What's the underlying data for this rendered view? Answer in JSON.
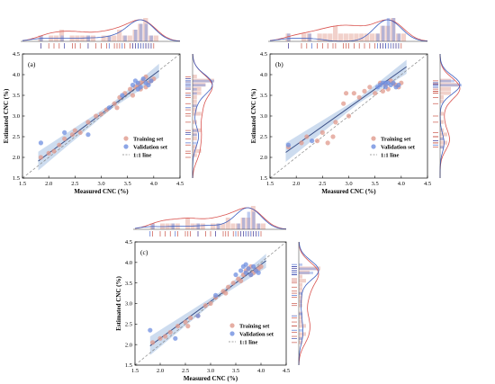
{
  "colors": {
    "training": "#e09a8c",
    "validation": "#6f8fe0",
    "fit_line": "#3b4f86",
    "band": "#b8cde8",
    "identity": "#888888",
    "rug_training": "#c0392b",
    "rug_validation": "#2f55c8",
    "kde_training": "#d9534f",
    "kde_validation": "#3c5fc0"
  },
  "chart_data": [
    {
      "type": "scatter",
      "panel_label": "(a)",
      "xlabel": "Measured CNC (%)",
      "ylabel": "Estimated CNC (%)",
      "xlim": [
        1.5,
        4.5
      ],
      "ylim": [
        1.5,
        4.5
      ],
      "x_ticks": [
        "1.5",
        "2.0",
        "2.5",
        "3.0",
        "3.5",
        "4.0",
        "4.5"
      ],
      "y_ticks": [
        "1.5",
        "2.0",
        "2.5",
        "3.0",
        "3.5",
        "4.0",
        "4.5"
      ],
      "legend": [
        "Training set",
        "Validation set",
        "1:1 line"
      ],
      "legend_position": "bottom-right",
      "grid": false,
      "fit": {
        "slope": 0.95,
        "intercept": 0.2
      },
      "series": [
        {
          "name": "Training set",
          "points": [
            [
              1.85,
              2.0
            ],
            [
              2.1,
              2.15
            ],
            [
              2.2,
              2.3
            ],
            [
              2.3,
              2.45
            ],
            [
              2.45,
              2.55
            ],
            [
              2.6,
              2.6
            ],
            [
              2.75,
              2.85
            ],
            [
              2.9,
              3.0
            ],
            [
              3.0,
              3.05
            ],
            [
              3.1,
              3.15
            ],
            [
              3.25,
              3.3
            ],
            [
              3.35,
              3.45
            ],
            [
              3.45,
              3.55
            ],
            [
              3.55,
              3.65
            ],
            [
              3.65,
              3.7
            ],
            [
              3.7,
              3.75
            ],
            [
              3.75,
              3.8
            ],
            [
              3.8,
              3.85
            ],
            [
              3.85,
              3.7
            ],
            [
              3.9,
              3.8
            ],
            [
              3.95,
              3.85
            ],
            [
              4.0,
              3.9
            ],
            [
              3.6,
              3.5
            ],
            [
              3.3,
              3.2
            ],
            [
              2.5,
              2.65
            ],
            [
              2.0,
              2.1
            ],
            [
              3.85,
              3.95
            ],
            [
              3.75,
              3.65
            ]
          ]
        },
        {
          "name": "Validation set",
          "points": [
            [
              1.85,
              2.35
            ],
            [
              2.3,
              2.6
            ],
            [
              2.75,
              2.55
            ],
            [
              3.15,
              3.2
            ],
            [
              3.4,
              3.5
            ],
            [
              3.6,
              3.75
            ],
            [
              3.65,
              3.85
            ],
            [
              3.7,
              3.8
            ],
            [
              3.75,
              3.7
            ],
            [
              3.8,
              3.9
            ],
            [
              3.85,
              3.8
            ],
            [
              3.9,
              3.75
            ],
            [
              3.95,
              3.85
            ],
            [
              3.7,
              3.65
            ]
          ]
        }
      ]
    },
    {
      "type": "scatter",
      "panel_label": "(b)",
      "xlabel": "Measured CNC (%)",
      "ylabel": "Estimated CNC (%)",
      "xlim": [
        1.5,
        4.5
      ],
      "ylim": [
        1.5,
        4.5
      ],
      "x_ticks": [
        "1.5",
        "2.0",
        "2.5",
        "3.0",
        "3.5",
        "4.0",
        "4.5"
      ],
      "y_ticks": [
        "1.5",
        "2.0",
        "2.5",
        "3.0",
        "3.5",
        "4.0",
        "4.5"
      ],
      "legend": [
        "Training set",
        "Validation set",
        "1:1 line"
      ],
      "legend_position": "bottom-right",
      "grid": false,
      "fit": {
        "slope": 0.9,
        "intercept": 0.5
      },
      "series": [
        {
          "name": "Training set",
          "points": [
            [
              1.85,
              2.25
            ],
            [
              2.1,
              2.35
            ],
            [
              2.2,
              2.5
            ],
            [
              2.4,
              2.4
            ],
            [
              2.5,
              2.6
            ],
            [
              2.6,
              2.35
            ],
            [
              2.7,
              2.5
            ],
            [
              2.75,
              2.85
            ],
            [
              2.9,
              3.3
            ],
            [
              3.0,
              3.0
            ],
            [
              3.1,
              3.55
            ],
            [
              3.2,
              3.45
            ],
            [
              3.3,
              3.6
            ],
            [
              3.4,
              3.7
            ],
            [
              3.5,
              3.55
            ],
            [
              3.6,
              3.8
            ],
            [
              3.7,
              3.75
            ],
            [
              3.8,
              3.85
            ],
            [
              3.9,
              3.75
            ],
            [
              4.0,
              3.8
            ],
            [
              3.95,
              3.7
            ],
            [
              3.75,
              3.65
            ],
            [
              3.85,
              3.78
            ],
            [
              2.95,
              3.55
            ],
            [
              3.65,
              3.6
            ]
          ]
        },
        {
          "name": "Validation set",
          "points": [
            [
              1.85,
              2.3
            ],
            [
              2.3,
              2.4
            ],
            [
              3.6,
              3.75
            ],
            [
              3.65,
              3.8
            ],
            [
              3.7,
              3.7
            ],
            [
              3.75,
              3.8
            ],
            [
              3.8,
              3.75
            ],
            [
              3.85,
              3.8
            ],
            [
              3.9,
              3.7
            ],
            [
              3.95,
              3.75
            ],
            [
              3.7,
              3.8
            ],
            [
              3.55,
              3.7
            ]
          ]
        }
      ]
    },
    {
      "type": "scatter",
      "panel_label": "(c)",
      "xlabel": "Measured CNC (%)",
      "ylabel": "Estimated CNC (%)",
      "xlim": [
        1.5,
        4.5
      ],
      "ylim": [
        1.5,
        4.5
      ],
      "x_ticks": [
        "1.5",
        "2.0",
        "2.5",
        "3.0",
        "3.5",
        "4.0",
        "4.5"
      ],
      "y_ticks": [
        "1.5",
        "2.0",
        "2.5",
        "3.0",
        "3.5",
        "4.0",
        "4.5"
      ],
      "legend": [
        "Training set",
        "Validation set",
        "1:1 line"
      ],
      "legend_position": "bottom-right",
      "grid": false,
      "fit": {
        "slope": 0.9,
        "intercept": 0.35
      },
      "series": [
        {
          "name": "Training set",
          "points": [
            [
              1.85,
              2.05
            ],
            [
              2.1,
              2.2
            ],
            [
              2.2,
              2.3
            ],
            [
              2.35,
              2.45
            ],
            [
              2.5,
              2.55
            ],
            [
              2.6,
              2.65
            ],
            [
              2.75,
              2.7
            ],
            [
              2.9,
              2.95
            ],
            [
              3.0,
              3.0
            ],
            [
              3.1,
              3.15
            ],
            [
              3.25,
              3.3
            ],
            [
              3.35,
              3.4
            ],
            [
              3.45,
              3.5
            ],
            [
              3.55,
              3.6
            ],
            [
              3.65,
              3.7
            ],
            [
              3.7,
              3.8
            ],
            [
              3.75,
              3.85
            ],
            [
              3.8,
              3.9
            ],
            [
              3.85,
              3.75
            ],
            [
              3.9,
              3.8
            ],
            [
              3.95,
              3.85
            ],
            [
              4.0,
              3.9
            ],
            [
              3.6,
              3.55
            ],
            [
              3.3,
              3.25
            ],
            [
              2.55,
              2.45
            ],
            [
              2.0,
              2.15
            ],
            [
              3.8,
              3.7
            ]
          ]
        },
        {
          "name": "Validation set",
          "points": [
            [
              1.8,
              2.35
            ],
            [
              2.3,
              2.15
            ],
            [
              2.75,
              2.7
            ],
            [
              3.1,
              3.2
            ],
            [
              3.5,
              3.7
            ],
            [
              3.6,
              3.8
            ],
            [
              3.65,
              3.9
            ],
            [
              3.7,
              3.75
            ],
            [
              3.75,
              3.85
            ],
            [
              3.8,
              3.7
            ],
            [
              3.85,
              3.9
            ],
            [
              3.9,
              3.8
            ],
            [
              3.95,
              3.75
            ],
            [
              3.7,
              3.95
            ]
          ]
        }
      ]
    }
  ]
}
